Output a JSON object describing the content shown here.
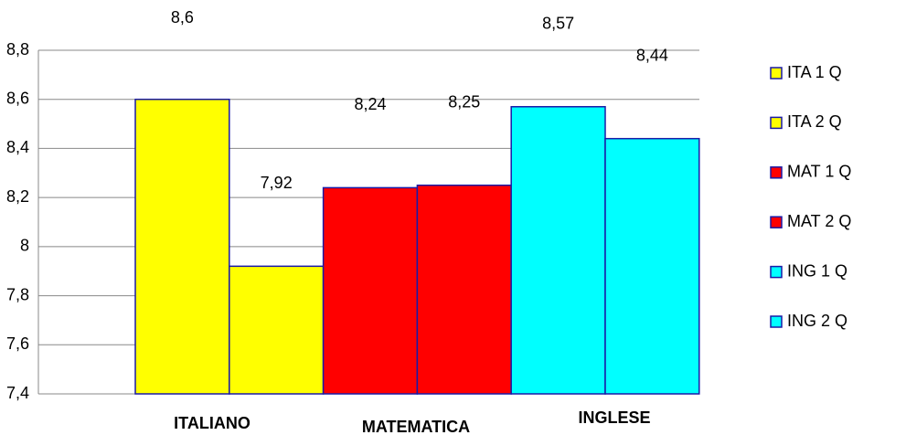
{
  "chart_data": {
    "type": "bar",
    "series": [
      {
        "name": "ITA 1 Q",
        "color": "#ffff00",
        "values": [
          8.6
        ],
        "value_labels": [
          "8,6"
        ]
      },
      {
        "name": "ITA 2 Q",
        "color": "#ffff00",
        "values": [
          7.92
        ],
        "value_labels": [
          "7,92"
        ]
      },
      {
        "name": "MAT 1 Q",
        "color": "#ff0000",
        "values": [
          8.24
        ],
        "value_labels": [
          "8,24"
        ]
      },
      {
        "name": "MAT 2 Q",
        "color": "#ff0000",
        "values": [
          8.25
        ],
        "value_labels": [
          "8,25"
        ]
      },
      {
        "name": "ING 1 Q",
        "color": "#00ffff",
        "values": [
          8.57
        ],
        "value_labels": [
          "8,57"
        ]
      },
      {
        "name": "ING 2 Q",
        "color": "#00ffff",
        "values": [
          8.44
        ],
        "value_labels": [
          "8,44"
        ]
      }
    ],
    "annotations": [
      "ITALIANO",
      "MATEMATICA",
      "INGLESE"
    ],
    "ylim": [
      7.4,
      8.8
    ],
    "yticks": [
      {
        "value": 7.4,
        "label": "7,4"
      },
      {
        "value": 7.6,
        "label": "7,6"
      },
      {
        "value": 7.8,
        "label": "7,8"
      },
      8,
      {
        "value": 8.2,
        "label": "8,2"
      },
      {
        "value": 8.4,
        "label": "8,4"
      },
      {
        "value": 8.6,
        "label": "8,6"
      },
      {
        "value": 8.8,
        "label": "8,8"
      }
    ],
    "grid": true,
    "legend": "right"
  }
}
